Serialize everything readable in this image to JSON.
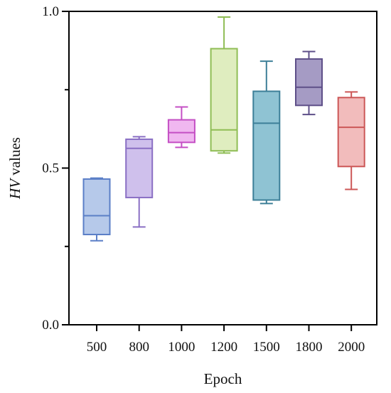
{
  "chart_data": {
    "type": "box",
    "xlabel": "Epoch",
    "ylabel_italic": "HV",
    "ylabel_rest": " values",
    "ylim": [
      0,
      1
    ],
    "yticks": [
      {
        "value": 0,
        "label": "0.0"
      },
      {
        "value": 0.5,
        "label": "0.5"
      },
      {
        "value": 1,
        "label": "1.0"
      }
    ],
    "yminor": [
      0.25,
      0.75
    ],
    "categories": [
      "500",
      "800",
      "1000",
      "1200",
      "1500",
      "1800",
      "2000"
    ],
    "boxes": [
      {
        "category": "500",
        "min": 0.268,
        "q1": 0.288,
        "median": 0.348,
        "q3": 0.465,
        "max": 0.468,
        "stroke": "#5b7fc7",
        "fill": "#b6c9ea"
      },
      {
        "category": "800",
        "min": 0.312,
        "q1": 0.406,
        "median": 0.563,
        "q3": 0.592,
        "max": 0.6,
        "stroke": "#8a6fc4",
        "fill": "#cfc0ec"
      },
      {
        "category": "1000",
        "min": 0.566,
        "q1": 0.582,
        "median": 0.613,
        "q3": 0.654,
        "max": 0.695,
        "stroke": "#c44fc4",
        "fill": "#f0b7f0"
      },
      {
        "category": "1200",
        "min": 0.548,
        "q1": 0.555,
        "median": 0.622,
        "q3": 0.881,
        "max": 0.982,
        "stroke": "#8fbd55",
        "fill": "#dfedbf"
      },
      {
        "category": "1500",
        "min": 0.387,
        "q1": 0.398,
        "median": 0.643,
        "q3": 0.745,
        "max": 0.841,
        "stroke": "#3d7f98",
        "fill": "#8fc3d3"
      },
      {
        "category": "1800",
        "min": 0.671,
        "q1": 0.7,
        "median": 0.758,
        "q3": 0.848,
        "max": 0.872,
        "stroke": "#5e4f88",
        "fill": "#a59bc4"
      },
      {
        "category": "2000",
        "min": 0.432,
        "q1": 0.505,
        "median": 0.63,
        "q3": 0.725,
        "max": 0.743,
        "stroke": "#cc5757",
        "fill": "#f2bcbc"
      }
    ]
  }
}
